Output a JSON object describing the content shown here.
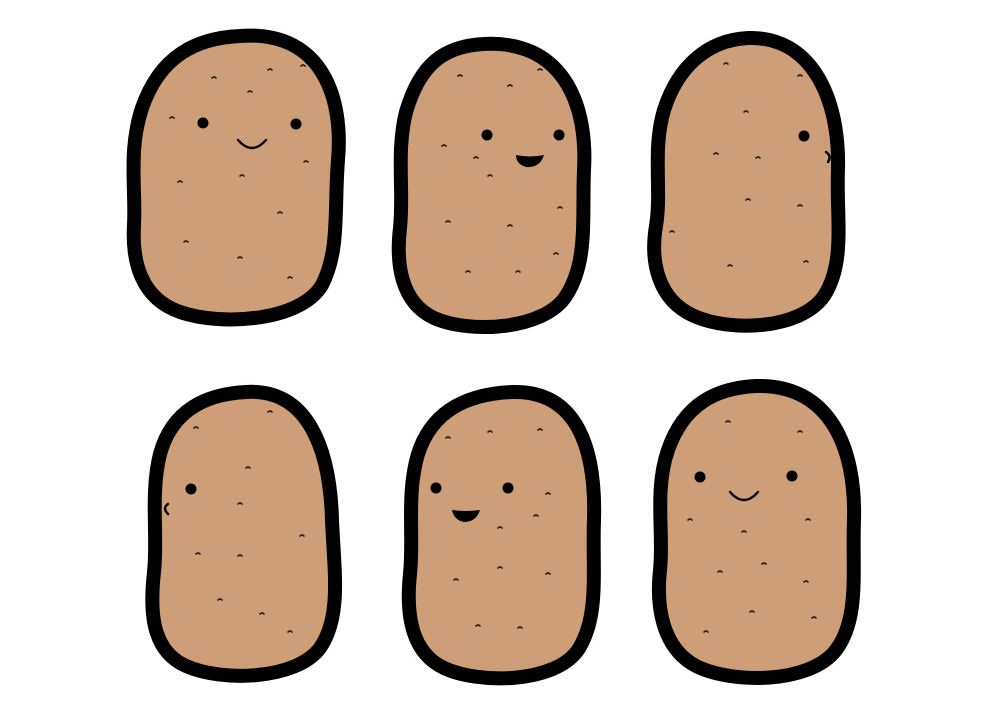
{
  "colors": {
    "background": "#ffffff",
    "potato_fill": "#cd9e77",
    "outline": "#000000",
    "speck": "#2a1a10"
  },
  "potatoes": [
    {
      "expression": "smile",
      "view": "front"
    },
    {
      "expression": "open-grin",
      "view": "three-quarter-right"
    },
    {
      "expression": "none",
      "view": "side-right"
    },
    {
      "expression": "none",
      "view": "side-left"
    },
    {
      "expression": "open-grin",
      "view": "three-quarter-left"
    },
    {
      "expression": "smile",
      "view": "front"
    }
  ]
}
